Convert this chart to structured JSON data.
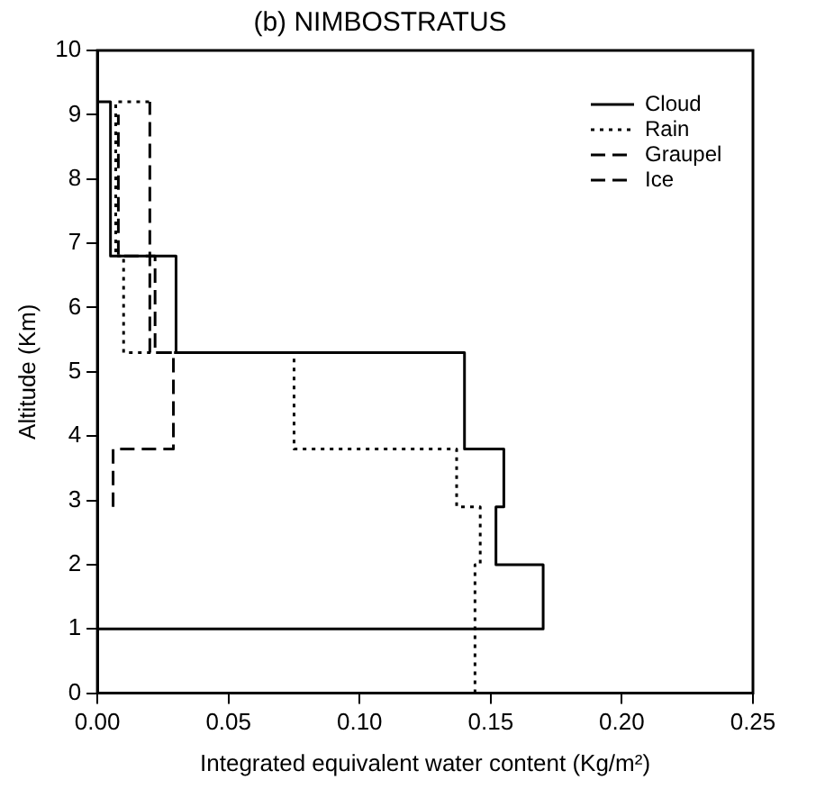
{
  "chart_data": {
    "type": "line",
    "title": "(b) NIMBOSTRATUS",
    "xlabel": "Integrated equivalent water content (Kg/m²)",
    "ylabel": "Altitude (Km)",
    "xlim": [
      0,
      0.25
    ],
    "xticks": [
      {
        "value": 0,
        "label": "0.00"
      },
      {
        "value": 0.05,
        "label": "0.05"
      },
      {
        "value": 0.1,
        "label": "0.10"
      },
      {
        "value": 0.15,
        "label": "0.15"
      },
      {
        "value": 0.2,
        "label": "0.20"
      },
      {
        "value": 0.25,
        "label": "0.25"
      }
    ],
    "ylim": [
      0,
      10
    ],
    "yticks": [
      0,
      1,
      2,
      3,
      4,
      5,
      6,
      7,
      8,
      9,
      10
    ],
    "grid": false,
    "legend": "top right",
    "marker": "none",
    "series": [
      {
        "name": "Cloud",
        "color": "#000000",
        "line_style": "solid",
        "x": [
          0,
          0.17,
          0.17,
          0.152,
          0.152,
          0.155,
          0.155,
          0.14,
          0.14,
          0.03,
          0.03,
          0.005,
          0.005,
          0
        ],
        "values": [
          1,
          1,
          2,
          2,
          2.9,
          2.9,
          3.8,
          3.8,
          5.3,
          5.3,
          6.8,
          6.8,
          9.2,
          9.2
        ]
      },
      {
        "name": "Rain",
        "color": "#000000",
        "line_style": "dotted",
        "x": [
          0.144,
          0.144,
          0.146,
          0.146,
          0.137,
          0.137,
          0.075,
          0.075,
          0.01,
          0.01,
          0.007,
          0.007,
          0.02
        ],
        "values": [
          0,
          2,
          2,
          2.9,
          2.9,
          3.8,
          3.8,
          5.3,
          5.3,
          6.8,
          6.8,
          9.2,
          9.2
        ]
      },
      {
        "name": "Graupel",
        "color": "#000000",
        "line_style": "dashed",
        "x": [
          0.006,
          0.006,
          0.029,
          0.029,
          0.022,
          0.022,
          0.008,
          0.008
        ],
        "values": [
          2.9,
          3.8,
          3.8,
          5.3,
          5.3,
          6.8,
          6.8,
          9
        ]
      },
      {
        "name": "Ice",
        "color": "#000000",
        "line_style": "dashed",
        "x": [
          0.02,
          0.02,
          0.02
        ],
        "values": [
          5.3,
          6.8,
          9.2
        ]
      }
    ]
  }
}
